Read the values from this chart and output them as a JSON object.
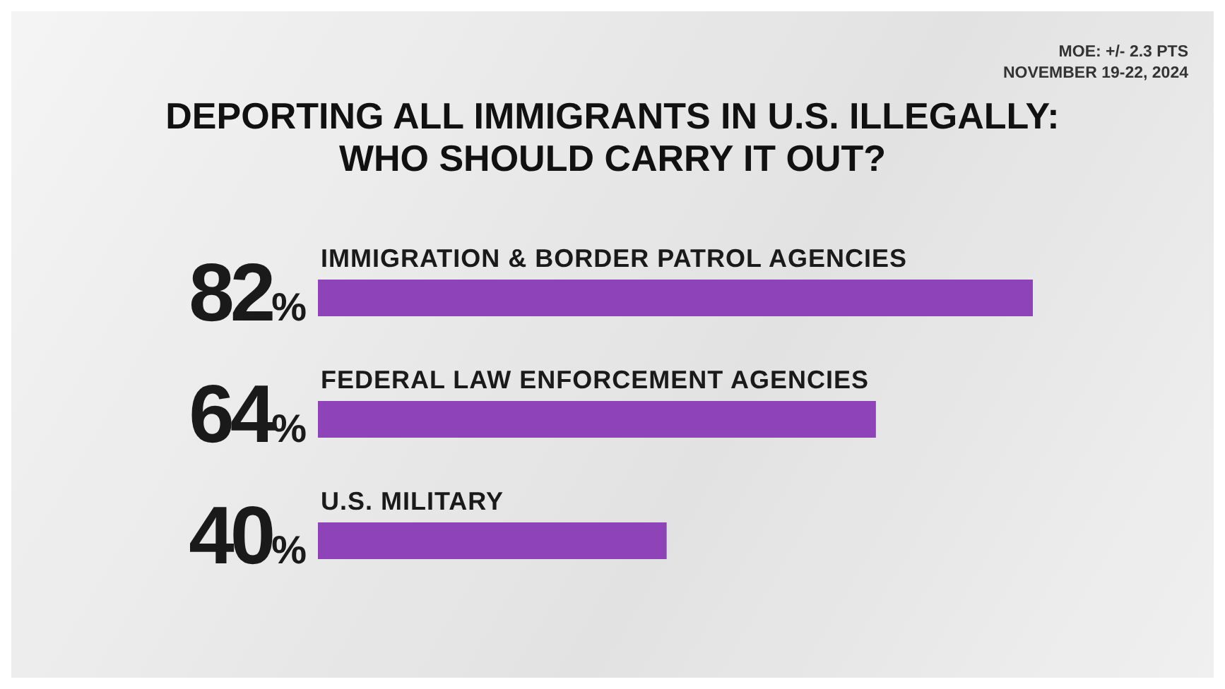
{
  "chart_data": {
    "type": "bar",
    "orientation": "horizontal",
    "title": "DEPORTING ALL IMMIGRANTS IN U.S. ILLEGALLY: WHO SHOULD CARRY IT OUT?",
    "annotations": [
      "MOE: +/- 2.3 PTS",
      "NOVEMBER 19-22, 2024"
    ],
    "categories": [
      "IMMIGRATION & BORDER PATROL AGENCIES",
      "FEDERAL LAW ENFORCEMENT AGENCIES",
      "U.S. MILITARY"
    ],
    "values": [
      82,
      64,
      40
    ],
    "value_labels": [
      "82%",
      "64%",
      "40%"
    ],
    "color": "#8e44b8"
  }
}
